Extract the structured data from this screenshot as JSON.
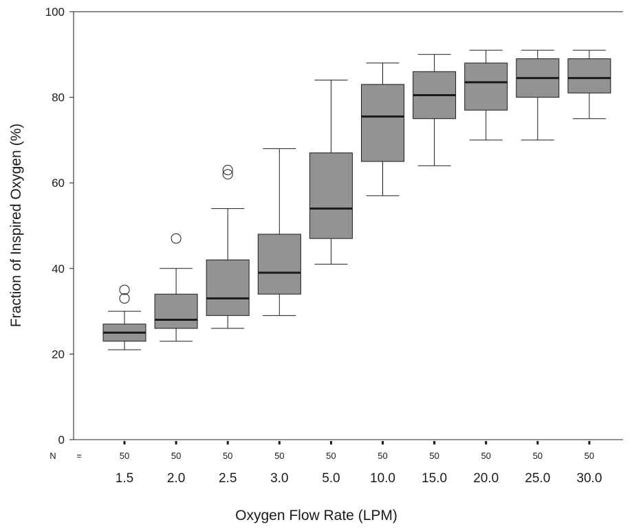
{
  "chart_data": {
    "type": "box",
    "title": "",
    "xlabel": "Oxygen Flow Rate (LPM)",
    "ylabel": "Fraction of Inspired Oxygen (%)",
    "ylim": [
      0,
      100
    ],
    "yticks": [
      "0",
      "20",
      "40",
      "60",
      "80",
      "100"
    ],
    "n_label": "N",
    "n_eq": "=",
    "grid": false,
    "colors": {
      "box_fill": "#939393",
      "stroke": "#1a1a1a",
      "median": "#1a1a1a"
    },
    "categories": [
      "1.5",
      "2.0",
      "2.5",
      "3.0",
      "5.0",
      "10.0",
      "15.0",
      "20.0",
      "25.0",
      "30.0"
    ],
    "n": [
      "50",
      "50",
      "50",
      "50",
      "50",
      "50",
      "50",
      "50",
      "50",
      "50"
    ],
    "boxes": [
      {
        "min": 21,
        "q1": 23,
        "median": 25,
        "q3": 27,
        "max": 30,
        "outliers": [
          33,
          35
        ]
      },
      {
        "min": 23,
        "q1": 26,
        "median": 28,
        "q3": 34,
        "max": 40,
        "outliers": [
          47
        ]
      },
      {
        "min": 26,
        "q1": 29,
        "median": 33,
        "q3": 42,
        "max": 54,
        "outliers": [
          62,
          63
        ]
      },
      {
        "min": 29,
        "q1": 34,
        "median": 39,
        "q3": 48,
        "max": 68,
        "outliers": []
      },
      {
        "min": 41,
        "q1": 47,
        "median": 54,
        "q3": 67,
        "max": 84,
        "outliers": []
      },
      {
        "min": 57,
        "q1": 65,
        "median": 75.5,
        "q3": 83,
        "max": 88,
        "outliers": []
      },
      {
        "min": 64,
        "q1": 75,
        "median": 80.5,
        "q3": 86,
        "max": 90,
        "outliers": []
      },
      {
        "min": 70,
        "q1": 77,
        "median": 83.5,
        "q3": 88,
        "max": 91,
        "outliers": []
      },
      {
        "min": 70,
        "q1": 80,
        "median": 84.5,
        "q3": 89,
        "max": 91,
        "outliers": []
      },
      {
        "min": 75,
        "q1": 81,
        "median": 84.5,
        "q3": 89,
        "max": 91,
        "outliers": []
      }
    ]
  }
}
